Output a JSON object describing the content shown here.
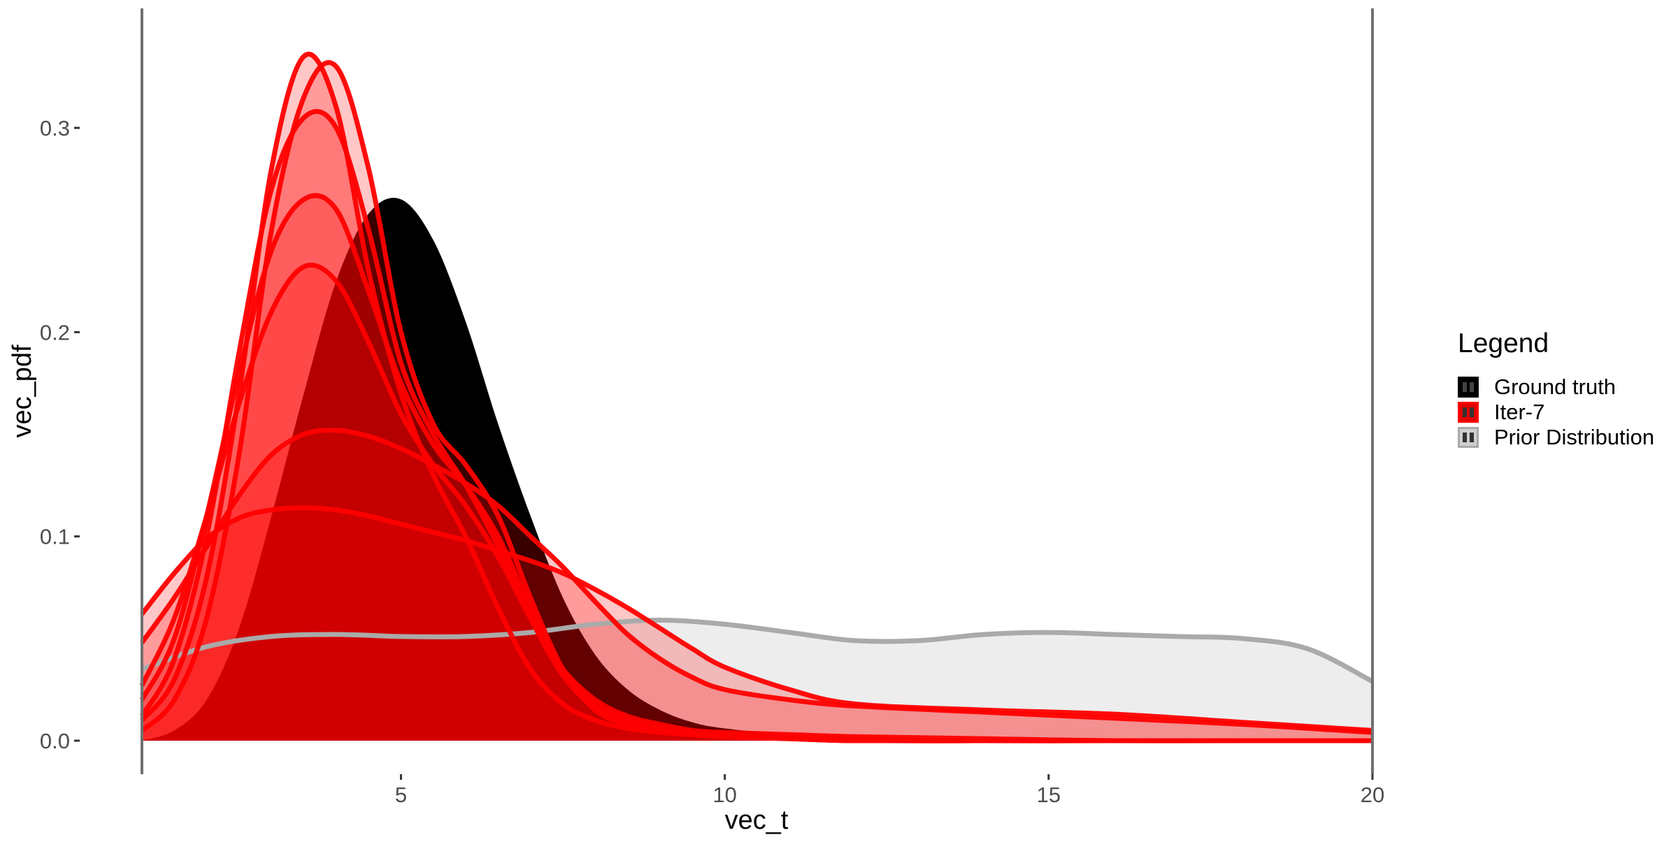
{
  "chart_data": {
    "type": "area",
    "title": "",
    "xlabel": "vec_t",
    "ylabel": "vec_pdf",
    "xlim": [
      1,
      20
    ],
    "ylim": [
      0,
      0.34
    ],
    "x_ticks": [
      5,
      10,
      15,
      20
    ],
    "y_ticks": [
      0.0,
      0.1,
      0.2,
      0.3
    ],
    "x_tick_labels": [
      "5",
      "10",
      "15",
      "20"
    ],
    "y_tick_labels": [
      "0.0",
      "0.1",
      "0.2",
      "0.3"
    ],
    "grid": false,
    "vertical_lines": [
      1,
      20
    ],
    "legend": {
      "title": "Legend",
      "placement": "right",
      "entries": [
        {
          "label": "Ground truth",
          "color": "#000000"
        },
        {
          "label": "Iter-7",
          "color": "#ff0000"
        },
        {
          "label": "Prior Distribution",
          "color": "#aaaaaa"
        }
      ]
    },
    "series": [
      {
        "name": "Prior Distribution",
        "color": "#aaaaaa",
        "fill": "#ededed",
        "x": [
          1,
          2,
          3,
          4,
          5,
          6,
          7,
          8,
          9,
          10,
          11,
          12,
          13,
          14,
          15,
          16,
          17,
          18,
          19,
          20
        ],
        "y": [
          0.035,
          0.046,
          0.051,
          0.052,
          0.051,
          0.051,
          0.053,
          0.057,
          0.059,
          0.057,
          0.053,
          0.049,
          0.049,
          0.052,
          0.053,
          0.052,
          0.051,
          0.05,
          0.045,
          0.029
        ]
      },
      {
        "name": "Ground truth",
        "color": "#000000",
        "fill": "#000000",
        "x": [
          1,
          1.5,
          2,
          2.5,
          3,
          3.5,
          4,
          4.5,
          5,
          5.5,
          6,
          6.5,
          7,
          7.5,
          8,
          8.5,
          9,
          9.5,
          10,
          11,
          12,
          14,
          16,
          18,
          20
        ],
        "y": [
          0.0,
          0.005,
          0.02,
          0.055,
          0.11,
          0.17,
          0.225,
          0.258,
          0.265,
          0.245,
          0.205,
          0.155,
          0.11,
          0.07,
          0.042,
          0.025,
          0.015,
          0.009,
          0.006,
          0.003,
          0.002,
          0.001,
          0.0,
          0.0,
          0.0
        ]
      },
      {
        "name": "Iter-7",
        "color": "#ff0000",
        "x": [
          1,
          1.5,
          2,
          2.5,
          3,
          3.5,
          4,
          4.5,
          5,
          5.5,
          6,
          6.5,
          7,
          7.5,
          8,
          8.5,
          9,
          9.5,
          10,
          11,
          12,
          14,
          16,
          18,
          20
        ],
        "y": [
          0.01,
          0.03,
          0.08,
          0.17,
          0.28,
          0.335,
          0.31,
          0.23,
          0.17,
          0.13,
          0.1,
          0.065,
          0.035,
          0.018,
          0.01,
          0.006,
          0.004,
          0.003,
          0.002,
          0.001,
          0.0,
          0.0,
          0.0,
          0.0,
          0.0
        ]
      },
      {
        "name": "",
        "color": "#ff0000",
        "x": [
          1,
          1.5,
          2,
          2.5,
          3,
          3.5,
          4,
          4.5,
          5,
          5.5,
          6,
          6.5,
          7,
          7.5,
          8,
          8.5,
          9,
          9.5,
          10,
          11,
          12,
          14,
          16,
          18,
          20
        ],
        "y": [
          0.005,
          0.02,
          0.06,
          0.14,
          0.25,
          0.315,
          0.33,
          0.28,
          0.2,
          0.155,
          0.135,
          0.11,
          0.07,
          0.035,
          0.015,
          0.008,
          0.005,
          0.003,
          0.002,
          0.001,
          0.0,
          0.0,
          0.0,
          0.0,
          0.0
        ]
      },
      {
        "name": "",
        "color": "#ff0000",
        "x": [
          1,
          1.5,
          2,
          2.5,
          3,
          3.5,
          4,
          4.5,
          5,
          5.5,
          6,
          6.5,
          7,
          7.5,
          8,
          8.5,
          9,
          9.5,
          10,
          11,
          12,
          14,
          16,
          18,
          20
        ],
        "y": [
          0.012,
          0.04,
          0.1,
          0.19,
          0.27,
          0.305,
          0.3,
          0.25,
          0.185,
          0.15,
          0.125,
          0.095,
          0.06,
          0.032,
          0.016,
          0.009,
          0.005,
          0.003,
          0.002,
          0.001,
          0.0,
          0.0,
          0.0,
          0.0,
          0.0
        ]
      },
      {
        "name": "",
        "color": "#ff0000",
        "x": [
          1,
          1.5,
          2,
          2.5,
          3,
          3.5,
          4,
          4.5,
          5,
          5.5,
          6,
          6.5,
          7,
          7.5,
          8,
          8.5,
          9,
          9.5,
          10,
          11,
          12,
          14,
          16,
          18,
          20
        ],
        "y": [
          0.02,
          0.05,
          0.11,
          0.18,
          0.24,
          0.265,
          0.26,
          0.22,
          0.175,
          0.145,
          0.125,
          0.1,
          0.065,
          0.035,
          0.018,
          0.01,
          0.006,
          0.004,
          0.003,
          0.002,
          0.001,
          0.0,
          0.0,
          0.0,
          0.0
        ]
      },
      {
        "name": "",
        "color": "#ff0000",
        "x": [
          1,
          1.5,
          2,
          2.5,
          3,
          3.5,
          4,
          4.5,
          5,
          5.5,
          6,
          6.5,
          7,
          7.5,
          8,
          8.5,
          9,
          9.5,
          10,
          11,
          12,
          14,
          16,
          18,
          20
        ],
        "y": [
          0.027,
          0.06,
          0.11,
          0.165,
          0.21,
          0.232,
          0.225,
          0.195,
          0.16,
          0.135,
          0.115,
          0.09,
          0.06,
          0.035,
          0.02,
          0.012,
          0.008,
          0.005,
          0.004,
          0.003,
          0.002,
          0.001,
          0.0,
          0.0,
          0.0
        ]
      },
      {
        "name": "",
        "color": "#ff0000",
        "x": [
          1,
          1.5,
          2,
          2.5,
          3,
          3.5,
          4,
          4.5,
          5,
          5.5,
          6,
          6.5,
          7,
          7.5,
          8,
          8.5,
          9,
          9.5,
          10,
          11,
          12,
          14,
          16,
          18,
          20
        ],
        "y": [
          0.048,
          0.07,
          0.095,
          0.12,
          0.14,
          0.15,
          0.152,
          0.149,
          0.143,
          0.135,
          0.126,
          0.115,
          0.1,
          0.085,
          0.068,
          0.052,
          0.04,
          0.031,
          0.025,
          0.02,
          0.017,
          0.014,
          0.011,
          0.008,
          0.004
        ]
      },
      {
        "name": "",
        "color": "#ff0000",
        "x": [
          1,
          1.5,
          2,
          2.5,
          3,
          3.5,
          4,
          4.5,
          5,
          5.5,
          6,
          6.5,
          7,
          7.5,
          8,
          8.5,
          9,
          9.5,
          10,
          11,
          12,
          14,
          16,
          18,
          20
        ],
        "y": [
          0.062,
          0.082,
          0.099,
          0.109,
          0.113,
          0.114,
          0.113,
          0.11,
          0.106,
          0.102,
          0.098,
          0.093,
          0.088,
          0.082,
          0.074,
          0.065,
          0.055,
          0.045,
          0.036,
          0.025,
          0.018,
          0.015,
          0.013,
          0.009,
          0.005
        ]
      }
    ]
  }
}
